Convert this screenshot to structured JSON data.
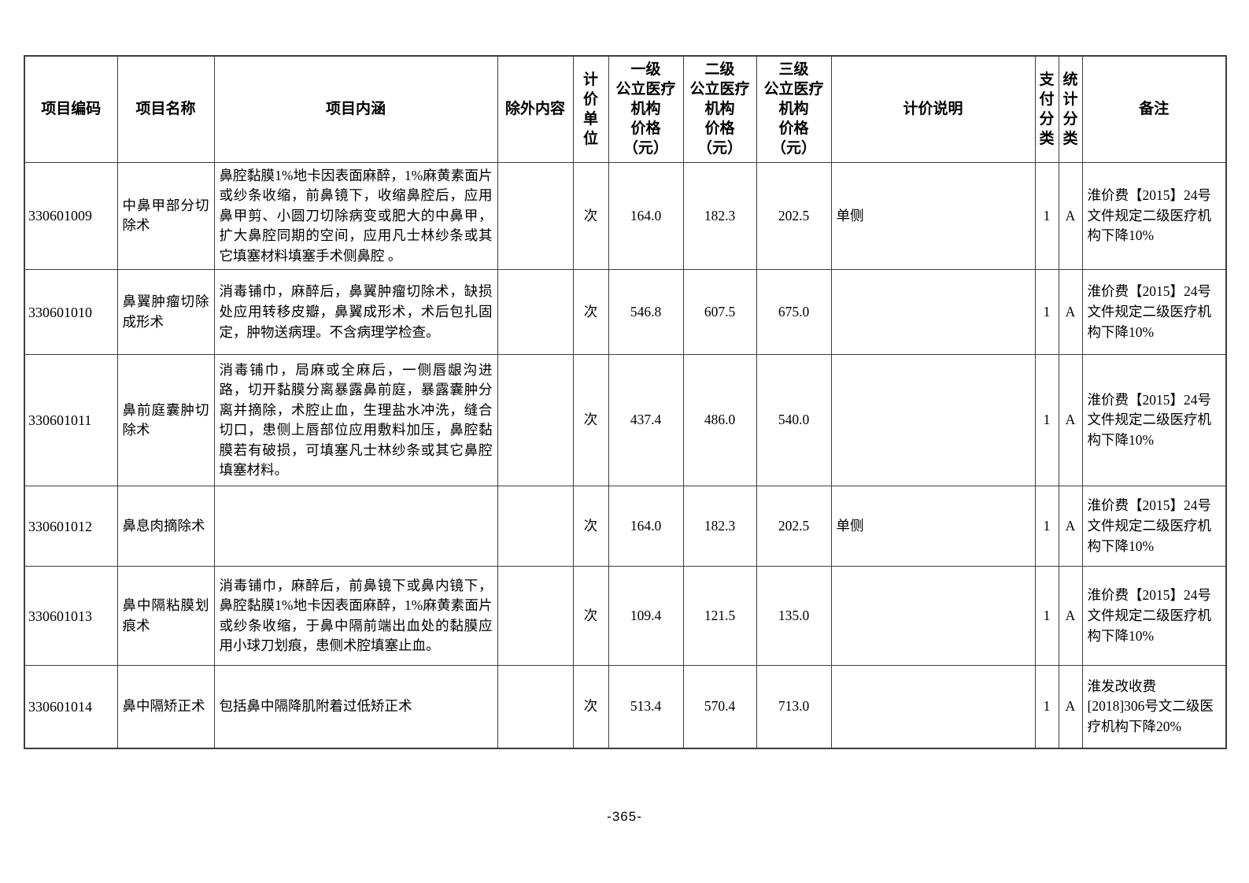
{
  "page": {
    "footer": "-365-"
  },
  "table": {
    "headers": {
      "code": "项目编码",
      "name": "项目名称",
      "content": "项目内涵",
      "exclusion": "除外内容",
      "unit": "计\n价\n单\n位",
      "price1": "一级\n公立医疗\n机构\n价格\n（元）",
      "price2": "二级\n公立医疗\n机构\n价格\n（元）",
      "price3": "三级\n公立医疗\n机构\n价格\n（元）",
      "pricing_note": "计价说明",
      "pay_class": "支\n付\n分\n类",
      "stat_class": "统\n计\n分\n类",
      "remark": "备注"
    },
    "rows": [
      {
        "code": "330601009",
        "name": "中鼻甲部分切除术",
        "content": "鼻腔黏膜1%地卡因表面麻醉，1%麻黄素面片或纱条收缩，前鼻镜下，收缩鼻腔后，应用鼻甲剪、小圆刀切除病变或肥大的中鼻甲，扩大鼻腔同期的空间，应用凡士林纱条或其它填塞材料填塞手术侧鼻腔 。",
        "exclusion": "",
        "unit": "次",
        "price1": "164.0",
        "price2": "182.3",
        "price3": "202.5",
        "pricing_note": "单侧",
        "pay_class": "1",
        "stat_class": "A",
        "remark": "淮价费【2015】24号文件规定二级医疗机构下降10%"
      },
      {
        "code": "330601010",
        "name": "鼻翼肿瘤切除成形术",
        "content": "消毒铺巾，麻醉后，鼻翼肿瘤切除术，缺损处应用转移皮瓣，鼻翼成形术，术后包扎固定，肿物送病理。不含病理学检查。",
        "exclusion": "",
        "unit": "次",
        "price1": "546.8",
        "price2": "607.5",
        "price3": "675.0",
        "pricing_note": "",
        "pay_class": "1",
        "stat_class": "A",
        "remark": "淮价费【2015】24号文件规定二级医疗机构下降10%"
      },
      {
        "code": "330601011",
        "name": "鼻前庭囊肿切除术",
        "content": "消毒铺巾，局麻或全麻后，一侧唇龈沟进路，切开黏膜分离暴露鼻前庭，暴露囊肿分离并摘除，术腔止血，生理盐水冲洗，缝合切口，患侧上唇部位应用敷料加压，鼻腔黏膜若有破损，可填塞凡士林纱条或其它鼻腔填塞材料。",
        "exclusion": "",
        "unit": "次",
        "price1": "437.4",
        "price2": "486.0",
        "price3": "540.0",
        "pricing_note": "",
        "pay_class": "1",
        "stat_class": "A",
        "remark": "淮价费【2015】24号文件规定二级医疗机构下降10%"
      },
      {
        "code": "330601012",
        "name": "鼻息肉摘除术",
        "content": "",
        "exclusion": "",
        "unit": "次",
        "price1": "164.0",
        "price2": "182.3",
        "price3": "202.5",
        "pricing_note": "单侧",
        "pay_class": "1",
        "stat_class": "A",
        "remark": "淮价费【2015】24号文件规定二级医疗机构下降10%"
      },
      {
        "code": "330601013",
        "name": "鼻中隔粘膜划痕术",
        "content": "消毒铺巾，麻醉后，前鼻镜下或鼻内镜下，鼻腔黏膜1%地卡因表面麻醉，1%麻黄素面片或纱条收缩，于鼻中隔前端出血处的黏膜应用小球刀划痕，患侧术腔填塞止血。",
        "exclusion": "",
        "unit": "次",
        "price1": "109.4",
        "price2": "121.5",
        "price3": "135.0",
        "pricing_note": "",
        "pay_class": "1",
        "stat_class": "A",
        "remark": "淮价费【2015】24号文件规定二级医疗机构下降10%"
      },
      {
        "code": "330601014",
        "name": "鼻中隔矫正术",
        "content": "包括鼻中隔降肌附着过低矫正术",
        "exclusion": "",
        "unit": "次",
        "price1": "513.4",
        "price2": "570.4",
        "price3": "713.0",
        "pricing_note": "",
        "pay_class": "1",
        "stat_class": "A",
        "remark": "淮发改收费\n[2018]306号文二级医疗机构下降20%"
      }
    ]
  }
}
